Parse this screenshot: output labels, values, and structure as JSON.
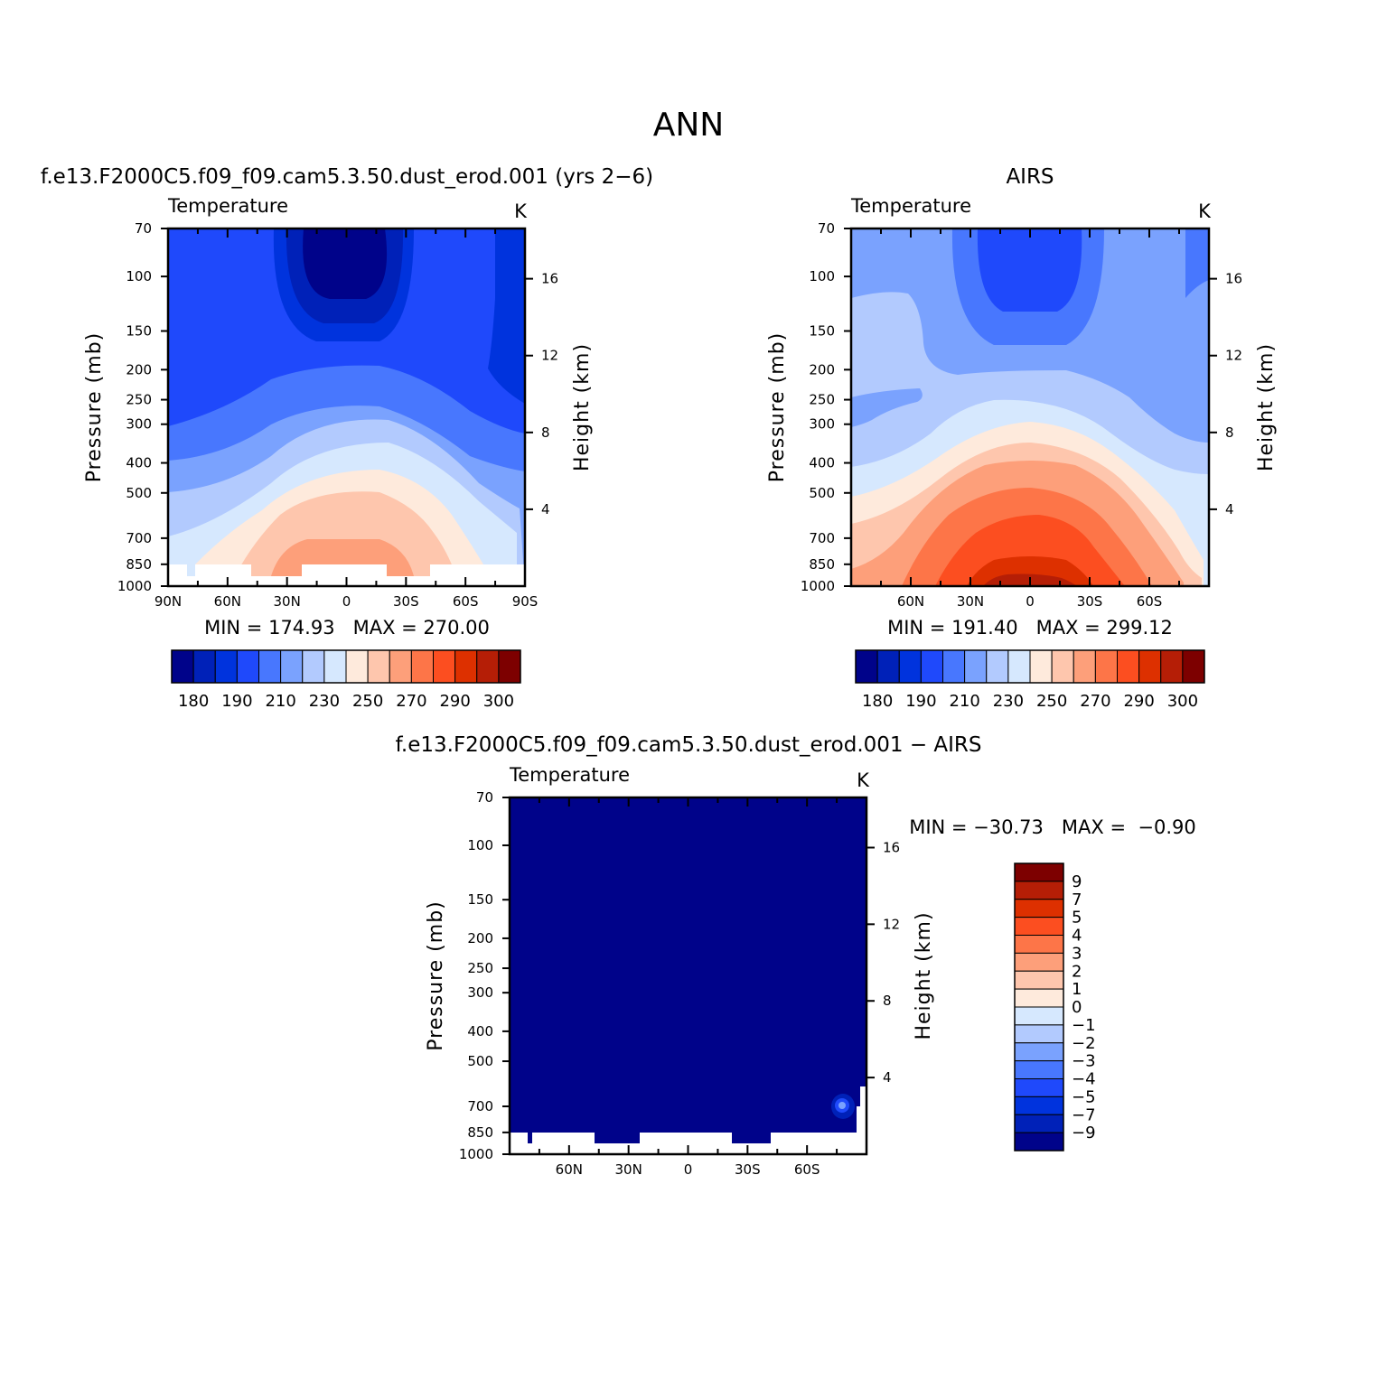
{
  "figure": {
    "title": "ANN",
    "diff_title": "f.e13.F2000C5.f09_f09.cam5.3.50.dust_erod.001 − AIRS"
  },
  "chart_data": [
    {
      "type": "contour",
      "title": "f.e13.F2000C5.f09_f09.cam5.3.50.dust_erod.001 (yrs 2−6)",
      "variable": "Temperature",
      "units": "K",
      "ylabel": "Pressure (mb)",
      "ylabel_right": "Height (km)",
      "x_ticks": [
        "90N",
        "60N",
        "30N",
        "0",
        "30S",
        "60S",
        "90S"
      ],
      "x_tick_values": [
        90,
        60,
        30,
        0,
        -30,
        -60,
        -90
      ],
      "y_ticks": [
        "70",
        "100",
        "150",
        "200",
        "250",
        "300",
        "400",
        "500",
        "700",
        "850",
        "1000"
      ],
      "y_tick_values": [
        70,
        100,
        150,
        200,
        250,
        300,
        400,
        500,
        700,
        850,
        1000
      ],
      "right_ticks": [
        "16",
        "12",
        "8",
        "4"
      ],
      "right_tick_values": [
        16,
        12,
        8,
        4
      ],
      "xlim": [
        90,
        -90
      ],
      "ylim": [
        70,
        1000
      ],
      "stats": "MIN = 174.93   MAX = 270.00",
      "min": 174.93,
      "max": 270.0,
      "colorbar_labels": [
        "180",
        "190",
        "210",
        "230",
        "250",
        "270",
        "290",
        "300"
      ]
    },
    {
      "type": "contour",
      "title": "AIRS",
      "variable": "Temperature",
      "units": "K",
      "ylabel": "Pressure (mb)",
      "ylabel_right": "Height (km)",
      "x_ticks": [
        "60N",
        "30N",
        "0",
        "30S",
        "60S"
      ],
      "x_tick_values": [
        60,
        30,
        0,
        -30,
        -60
      ],
      "y_ticks": [
        "70",
        "100",
        "150",
        "200",
        "250",
        "300",
        "400",
        "500",
        "700",
        "850",
        "1000"
      ],
      "y_tick_values": [
        70,
        100,
        150,
        200,
        250,
        300,
        400,
        500,
        700,
        850,
        1000
      ],
      "right_ticks": [
        "16",
        "12",
        "8",
        "4"
      ],
      "right_tick_values": [
        16,
        12,
        8,
        4
      ],
      "xlim": [
        90,
        -90
      ],
      "ylim": [
        70,
        1000
      ],
      "stats": "MIN = 191.40   MAX = 299.12",
      "min": 191.4,
      "max": 299.12,
      "colorbar_labels": [
        "180",
        "190",
        "210",
        "230",
        "250",
        "270",
        "290",
        "300"
      ]
    },
    {
      "type": "contour",
      "title": "f.e13.F2000C5.f09_f09.cam5.3.50.dust_erod.001 − AIRS",
      "variable": "Temperature",
      "units": "K",
      "ylabel": "Pressure (mb)",
      "ylabel_right": "Height (km)",
      "x_ticks": [
        "60N",
        "30N",
        "0",
        "30S",
        "60S"
      ],
      "x_tick_values": [
        60,
        30,
        0,
        -30,
        -60
      ],
      "y_ticks": [
        "70",
        "100",
        "150",
        "200",
        "250",
        "300",
        "400",
        "500",
        "700",
        "850",
        "1000"
      ],
      "y_tick_values": [
        70,
        100,
        150,
        200,
        250,
        300,
        400,
        500,
        700,
        850,
        1000
      ],
      "right_ticks": [
        "16",
        "12",
        "8",
        "4"
      ],
      "right_tick_values": [
        16,
        12,
        8,
        4
      ],
      "xlim": [
        90,
        -90
      ],
      "ylim": [
        70,
        1000
      ],
      "stats": "MIN = −30.73   MAX =  −0.90",
      "min": -30.73,
      "max": -0.9,
      "colorbar_labels": [
        "9",
        "7",
        "5",
        "4",
        "3",
        "2",
        "1",
        "0",
        "−1",
        "−2",
        "−3",
        "−4",
        "−5",
        "−7",
        "−9"
      ]
    }
  ],
  "colors": {
    "abs_scale": [
      "#00038a",
      "#0021b8",
      "#0033dd",
      "#1f49fb",
      "#4877fe",
      "#7aa2fe",
      "#b2cafe",
      "#d6e8fe",
      "#feeadc",
      "#fec6ad",
      "#fd9f7a",
      "#fd7548",
      "#fc4e20",
      "#dd3000",
      "#b51e06",
      "#7d0000"
    ],
    "diff_scale": [
      "#7d0000",
      "#b51e06",
      "#dd3000",
      "#fc4e20",
      "#fd7548",
      "#fd9f7a",
      "#fec6ad",
      "#feeadc",
      "#d6e8fe",
      "#b2cafe",
      "#7aa2fe",
      "#4877fe",
      "#1f49fb",
      "#0033dd",
      "#0021b8",
      "#00038a"
    ]
  }
}
